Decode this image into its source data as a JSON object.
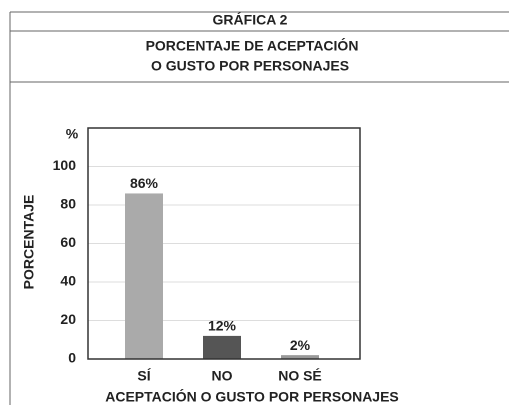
{
  "header": {
    "label": "GRÁFICA 2"
  },
  "chart_data": {
    "type": "bar",
    "title": [
      "PORCENTAJE DE ACEPTACIÓN",
      "O GUSTO  POR PERSONAJES"
    ],
    "y_unit": "%",
    "y_label": "PORCENTAJE",
    "x_label": "ACEPTACIÓN O GUSTO POR PERSONAJES",
    "categories": [
      "SÍ",
      "NO",
      "NO SÉ"
    ],
    "values": [
      86,
      12,
      2
    ],
    "value_labels": [
      "86%",
      "12%",
      "2%"
    ],
    "colors": [
      "#aaaaaa",
      "#555555",
      "#999999"
    ],
    "ylim": [
      0,
      120
    ],
    "yticks": [
      0,
      20,
      40,
      60,
      80,
      100
    ],
    "grid": true
  }
}
